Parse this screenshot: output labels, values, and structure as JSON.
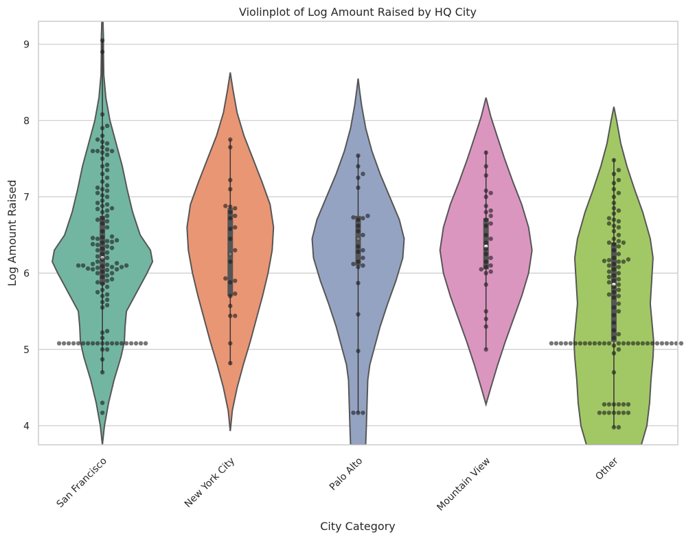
{
  "chart_data": {
    "type": "violin",
    "title": "Violinplot of Log Amount Raised by HQ City",
    "xlabel": "City Category",
    "ylabel": "Log Amount Raised",
    "ylim": [
      3.75,
      9.3
    ],
    "yticks": [
      4,
      5,
      6,
      7,
      8,
      9
    ],
    "grid": true,
    "overlay": "swarm",
    "categories": [
      "San Francisco",
      "New York City",
      "Palo Alto",
      "Mountain View",
      "Other"
    ],
    "colors": [
      "#72b6a1",
      "#e99675",
      "#95a3c3",
      "#db96c0",
      "#a2c865"
    ],
    "violins": [
      {
        "name": "San Francisco",
        "range": [
          3.75,
          9.3
        ],
        "profile": [
          [
            3.75,
            0
          ],
          [
            4.0,
            3
          ],
          [
            4.3,
            9
          ],
          [
            4.6,
            17
          ],
          [
            4.9,
            27
          ],
          [
            5.1,
            32
          ],
          [
            5.3,
            33
          ],
          [
            5.5,
            35
          ],
          [
            5.75,
            50
          ],
          [
            6.0,
            65
          ],
          [
            6.15,
            73
          ],
          [
            6.3,
            70
          ],
          [
            6.5,
            55
          ],
          [
            6.8,
            44
          ],
          [
            7.1,
            36
          ],
          [
            7.4,
            29
          ],
          [
            7.7,
            20
          ],
          [
            8.0,
            11
          ],
          [
            8.3,
            5
          ],
          [
            8.6,
            2
          ],
          [
            8.9,
            1.5
          ],
          [
            9.1,
            1.5
          ],
          [
            9.3,
            0.8
          ]
        ],
        "median": 6.2,
        "q1": 5.85,
        "q3": 6.75,
        "whisker": [
          4.7,
          9.05
        ],
        "points": [
          4.17,
          4.3,
          4.7,
          4.87,
          5.0,
          5.0,
          5.08,
          5.08,
          5.08,
          5.08,
          5.08,
          5.08,
          5.08,
          5.08,
          5.08,
          5.08,
          5.08,
          5.08,
          5.08,
          5.08,
          5.08,
          5.08,
          5.08,
          5.08,
          5.08,
          5.15,
          5.22,
          5.24,
          5.55,
          5.58,
          5.62,
          5.65,
          5.7,
          5.72,
          5.75,
          5.78,
          5.82,
          5.86,
          5.88,
          5.9,
          5.92,
          5.95,
          5.97,
          6.0,
          6.0,
          6.02,
          6.04,
          6.05,
          6.05,
          6.06,
          6.07,
          6.08,
          6.08,
          6.09,
          6.1,
          6.1,
          6.1,
          6.11,
          6.12,
          6.13,
          6.15,
          6.18,
          6.2,
          6.22,
          6.25,
          6.27,
          6.3,
          6.32,
          6.33,
          6.35,
          6.37,
          6.38,
          6.4,
          6.41,
          6.42,
          6.43,
          6.45,
          6.46,
          6.47,
          6.48,
          6.55,
          6.6,
          6.65,
          6.68,
          6.7,
          6.72,
          6.75,
          6.8,
          6.82,
          6.84,
          6.85,
          6.88,
          6.9,
          6.92,
          6.95,
          7.0,
          7.02,
          7.05,
          7.08,
          7.1,
          7.12,
          7.15,
          7.2,
          7.25,
          7.3,
          7.35,
          7.4,
          7.42,
          7.5,
          7.55,
          7.58,
          7.6,
          7.6,
          7.6,
          7.62,
          7.65,
          7.7,
          7.72,
          7.75,
          7.8,
          7.9,
          7.93,
          8.08,
          8.9,
          9.05
        ]
      },
      {
        "name": "New York City",
        "range": [
          3.93,
          8.63
        ],
        "profile": [
          [
            3.93,
            0
          ],
          [
            4.2,
            3
          ],
          [
            4.5,
            10
          ],
          [
            4.8,
            19
          ],
          [
            5.1,
            29
          ],
          [
            5.4,
            38
          ],
          [
            5.7,
            47
          ],
          [
            6.0,
            55
          ],
          [
            6.3,
            61
          ],
          [
            6.6,
            63
          ],
          [
            6.9,
            58
          ],
          [
            7.2,
            46
          ],
          [
            7.5,
            33
          ],
          [
            7.8,
            20
          ],
          [
            8.1,
            10
          ],
          [
            8.4,
            4
          ],
          [
            8.63,
            0
          ]
        ],
        "median": 6.25,
        "q1": 5.7,
        "q3": 6.85,
        "whisker": [
          4.8,
          7.75
        ],
        "points": [
          4.82,
          5.08,
          5.44,
          5.44,
          5.57,
          5.7,
          5.73,
          5.88,
          5.9,
          5.93,
          6.15,
          6.25,
          6.3,
          6.45,
          6.58,
          6.6,
          6.72,
          6.75,
          6.8,
          6.85,
          6.87,
          6.88,
          7.1,
          7.22,
          7.65,
          7.75
        ]
      },
      {
        "name": "Palo Alto",
        "range": [
          3.75,
          8.55
        ],
        "profile": [
          [
            3.75,
            11
          ],
          [
            4.0,
            12
          ],
          [
            4.3,
            13
          ],
          [
            4.6,
            14
          ],
          [
            4.8,
            17
          ],
          [
            5.0,
            23
          ],
          [
            5.3,
            32
          ],
          [
            5.6,
            43
          ],
          [
            5.9,
            55
          ],
          [
            6.2,
            65
          ],
          [
            6.45,
            67
          ],
          [
            6.7,
            60
          ],
          [
            7.0,
            46
          ],
          [
            7.3,
            32
          ],
          [
            7.6,
            20
          ],
          [
            7.9,
            11
          ],
          [
            8.2,
            5
          ],
          [
            8.4,
            2
          ],
          [
            8.55,
            0
          ]
        ],
        "median": 6.45,
        "q1": 6.1,
        "q3": 6.75,
        "whisker": [
          4.17,
          7.55
        ],
        "points": [
          4.17,
          4.17,
          4.17,
          4.98,
          5.46,
          5.87,
          6.08,
          6.1,
          6.12,
          6.15,
          6.2,
          6.28,
          6.3,
          6.35,
          6.45,
          6.5,
          6.55,
          6.62,
          6.7,
          6.72,
          6.73,
          6.75,
          7.12,
          7.25,
          7.3,
          7.4,
          7.54
        ]
      },
      {
        "name": "Mountain View",
        "range": [
          4.28,
          8.3
        ],
        "profile": [
          [
            4.28,
            0
          ],
          [
            4.5,
            7
          ],
          [
            4.8,
            17
          ],
          [
            5.1,
            28
          ],
          [
            5.4,
            40
          ],
          [
            5.7,
            52
          ],
          [
            6.0,
            62
          ],
          [
            6.3,
            67
          ],
          [
            6.6,
            62
          ],
          [
            6.9,
            52
          ],
          [
            7.2,
            39
          ],
          [
            7.5,
            27
          ],
          [
            7.8,
            16
          ],
          [
            8.05,
            7
          ],
          [
            8.3,
            0
          ]
        ],
        "median": 6.35,
        "q1": 6.05,
        "q3": 6.72,
        "whisker": [
          5.0,
          7.6
        ],
        "points": [
          5.0,
          5.3,
          5.4,
          5.5,
          5.85,
          6.0,
          6.02,
          6.05,
          6.08,
          6.1,
          6.15,
          6.2,
          6.25,
          6.32,
          6.4,
          6.45,
          6.5,
          6.62,
          6.65,
          6.7,
          6.75,
          6.8,
          6.82,
          6.88,
          7.0,
          7.05,
          7.08,
          7.28,
          7.4,
          7.58
        ]
      },
      {
        "name": "Other",
        "range": [
          3.75,
          8.18
        ],
        "profile": [
          [
            3.75,
            40
          ],
          [
            4.0,
            48
          ],
          [
            4.3,
            52
          ],
          [
            4.6,
            54
          ],
          [
            4.9,
            57
          ],
          [
            5.1,
            58
          ],
          [
            5.3,
            56
          ],
          [
            5.6,
            53
          ],
          [
            5.9,
            55
          ],
          [
            6.2,
            57
          ],
          [
            6.45,
            53
          ],
          [
            6.8,
            42
          ],
          [
            7.1,
            30
          ],
          [
            7.4,
            19
          ],
          [
            7.7,
            10
          ],
          [
            8.0,
            4
          ],
          [
            8.18,
            0
          ]
        ],
        "median": 5.85,
        "q1": 5.1,
        "q3": 6.4,
        "whisker": [
          3.98,
          7.5
        ],
        "points": [
          3.98,
          3.98,
          4.17,
          4.17,
          4.17,
          4.17,
          4.17,
          4.17,
          4.17,
          4.28,
          4.28,
          4.28,
          4.28,
          4.28,
          4.28,
          4.7,
          4.95,
          5.0,
          5.05,
          5.08,
          5.08,
          5.08,
          5.08,
          5.08,
          5.08,
          5.08,
          5.08,
          5.08,
          5.08,
          5.08,
          5.08,
          5.08,
          5.08,
          5.08,
          5.08,
          5.08,
          5.08,
          5.08,
          5.08,
          5.08,
          5.08,
          5.08,
          5.08,
          5.08,
          5.08,
          5.08,
          5.15,
          5.2,
          5.25,
          5.35,
          5.45,
          5.5,
          5.55,
          5.6,
          5.68,
          5.7,
          5.72,
          5.75,
          5.78,
          5.82,
          5.85,
          5.88,
          5.9,
          5.92,
          5.95,
          5.97,
          6.0,
          6.02,
          6.05,
          6.08,
          6.1,
          6.12,
          6.15,
          6.15,
          6.16,
          6.17,
          6.18,
          6.2,
          6.25,
          6.3,
          6.35,
          6.38,
          6.4,
          6.4,
          6.42,
          6.45,
          6.5,
          6.55,
          6.6,
          6.62,
          6.65,
          6.68,
          6.7,
          6.72,
          6.78,
          6.82,
          6.85,
          6.92,
          7.0,
          7.05,
          7.1,
          7.18,
          7.22,
          7.3,
          7.35,
          7.48
        ]
      }
    ]
  }
}
